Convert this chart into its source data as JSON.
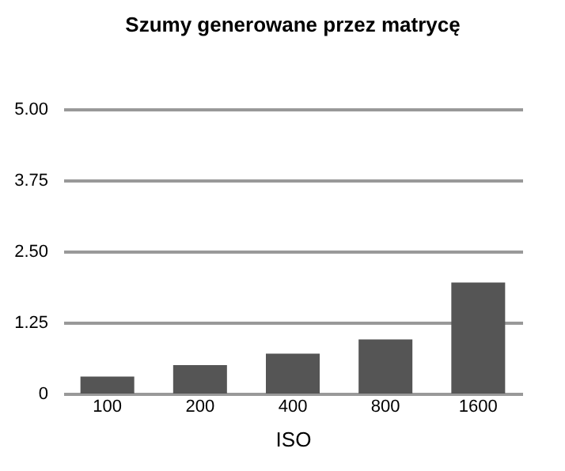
{
  "chart_data": {
    "type": "bar",
    "title": "Szumy generowane przez matrycę",
    "xlabel": "ISO",
    "categories": [
      "100",
      "200",
      "400",
      "800",
      "1600"
    ],
    "values": [
      0.3,
      0.5,
      0.7,
      0.95,
      1.95
    ],
    "color": "#555555",
    "ylim": [
      0,
      5
    ],
    "yticks": [
      {
        "value": 0,
        "label": "0"
      },
      1.25,
      {
        "value": 2.5,
        "label": "2.50"
      },
      3.75,
      {
        "value": 5,
        "label": "5.00"
      }
    ],
    "grid": "y"
  }
}
